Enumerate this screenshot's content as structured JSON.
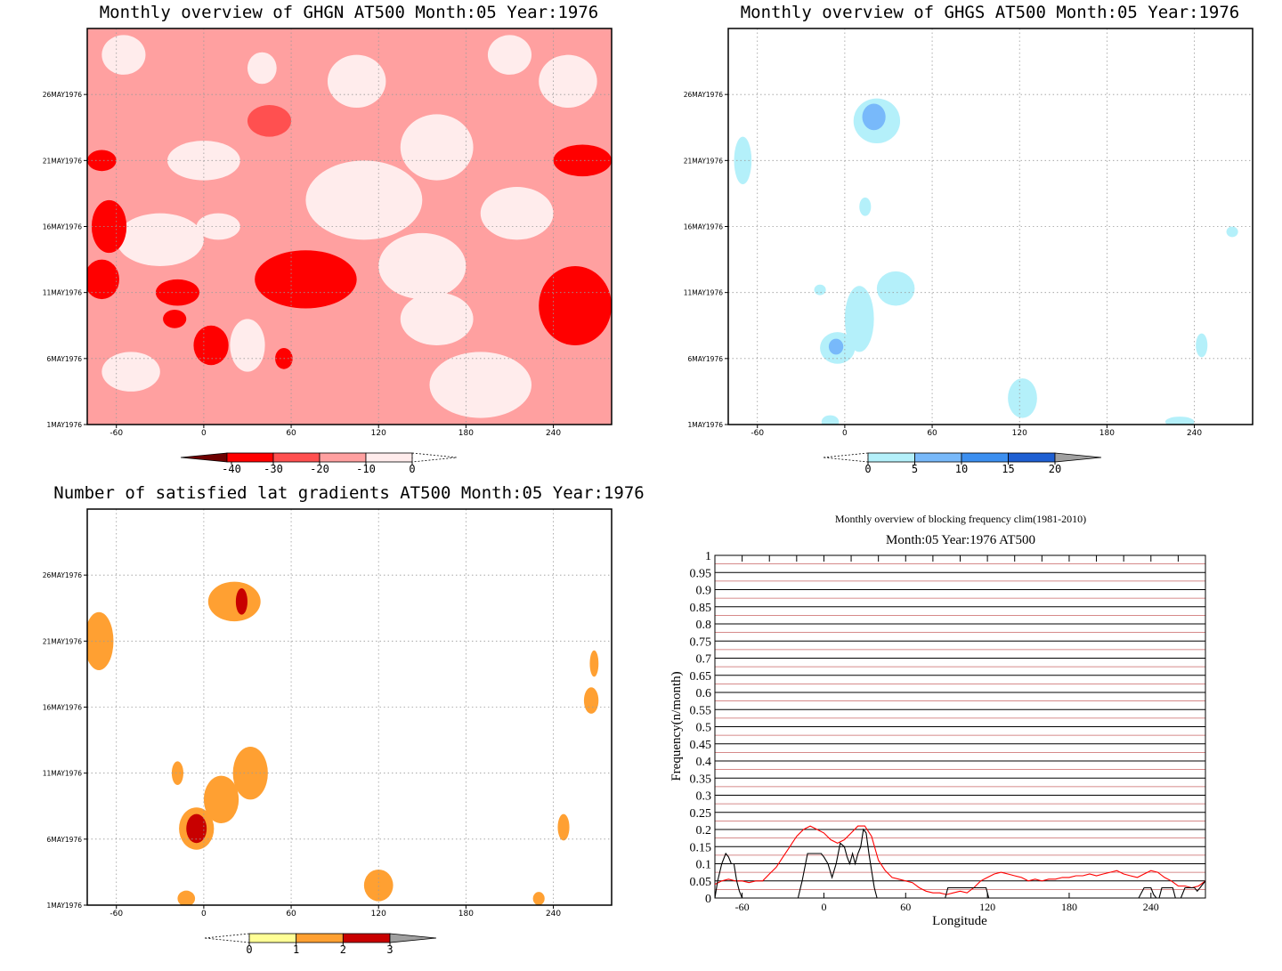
{
  "chart_data": [
    {
      "type": "heatmap",
      "title": "Monthly overview of GHGN AT500 Month:05 Year:1976",
      "x_ticks": [
        "-60",
        "0",
        "60",
        "120",
        "180",
        "240"
      ],
      "x_tick_values": [
        -60,
        0,
        60,
        120,
        180,
        240
      ],
      "xlim": [
        -80,
        280
      ],
      "y_ticks": [
        "1MAY1976",
        "6MAY1976",
        "11MAY1976",
        "16MAY1976",
        "21MAY1976",
        "26MAY1976"
      ],
      "y_tick_values": [
        1,
        6,
        11,
        16,
        21,
        26
      ],
      "ylim": [
        1,
        31
      ],
      "grid": true,
      "colorbar": {
        "levels": [
          -40,
          -30,
          -20,
          -10,
          0
        ],
        "labels": [
          "-40",
          "-30",
          "-20",
          "-10",
          "0"
        ],
        "colors": [
          "#6e0000",
          "#ff0000",
          "#ff5050",
          "#ffa0a0",
          "#ffecec"
        ],
        "extend": "both"
      },
      "blobs": [
        {
          "lon": -55,
          "day": 29,
          "rx": 15,
          "ry": 1.5,
          "level": 0
        },
        {
          "lon": 40,
          "day": 28,
          "rx": 10,
          "ry": 1.2,
          "level": 0
        },
        {
          "lon": 105,
          "day": 27,
          "rx": 20,
          "ry": 2.0,
          "level": 0
        },
        {
          "lon": 210,
          "day": 29,
          "rx": 15,
          "ry": 1.5,
          "level": 0
        },
        {
          "lon": 45,
          "day": 24,
          "rx": 15,
          "ry": 1.2,
          "level": -20
        },
        {
          "lon": 0,
          "day": 21,
          "rx": 25,
          "ry": 1.5,
          "level": 0
        },
        {
          "lon": 110,
          "day": 18,
          "rx": 40,
          "ry": 3.0,
          "level": 0
        },
        {
          "lon": 160,
          "day": 22,
          "rx": 25,
          "ry": 2.5,
          "level": 0
        },
        {
          "lon": 215,
          "day": 17,
          "rx": 25,
          "ry": 2.0,
          "level": 0
        },
        {
          "lon": -30,
          "day": 15,
          "rx": 30,
          "ry": 2.0,
          "level": 0
        },
        {
          "lon": 10,
          "day": 16,
          "rx": 15,
          "ry": 1.0,
          "level": 0
        },
        {
          "lon": 150,
          "day": 13,
          "rx": 30,
          "ry": 2.5,
          "level": 0
        },
        {
          "lon": 30,
          "day": 7,
          "rx": 12,
          "ry": 2.0,
          "level": 0
        },
        {
          "lon": -50,
          "day": 5,
          "rx": 20,
          "ry": 1.5,
          "level": 0
        },
        {
          "lon": 190,
          "day": 4,
          "rx": 35,
          "ry": 2.5,
          "level": 0
        },
        {
          "lon": 160,
          "day": 9,
          "rx": 25,
          "ry": 2.0,
          "level": 0
        },
        {
          "lon": 250,
          "day": 27,
          "rx": 20,
          "ry": 2.0,
          "level": 0
        },
        {
          "lon": 70,
          "day": 12,
          "rx": 35,
          "ry": 2.2,
          "level": -30
        },
        {
          "lon": 5,
          "day": 7,
          "rx": 12,
          "ry": 1.5,
          "level": -30
        },
        {
          "lon": -70,
          "day": 12,
          "rx": 12,
          "ry": 1.5,
          "level": -30
        },
        {
          "lon": -65,
          "day": 16,
          "rx": 12,
          "ry": 2.0,
          "level": -30
        },
        {
          "lon": -18,
          "day": 11,
          "rx": 15,
          "ry": 1.0,
          "level": -30
        },
        {
          "lon": 255,
          "day": 10,
          "rx": 25,
          "ry": 3.0,
          "level": -30
        },
        {
          "lon": 260,
          "day": 21,
          "rx": 20,
          "ry": 1.2,
          "level": -30
        },
        {
          "lon": -70,
          "day": 21,
          "rx": 10,
          "ry": 0.8,
          "level": -30
        },
        {
          "lon": 55,
          "day": 6,
          "rx": 6,
          "ry": 0.8,
          "level": -30
        },
        {
          "lon": -20,
          "day": 9,
          "rx": 8,
          "ry": 0.7,
          "level": -30
        }
      ]
    },
    {
      "type": "heatmap",
      "title": "Monthly overview of GHGS AT500 Month:05 Year:1976",
      "x_ticks": [
        "-60",
        "0",
        "60",
        "120",
        "180",
        "240"
      ],
      "x_tick_values": [
        -60,
        0,
        60,
        120,
        180,
        240
      ],
      "xlim": [
        -80,
        280
      ],
      "y_ticks": [
        "1MAY1976",
        "6MAY1976",
        "11MAY1976",
        "16MAY1976",
        "21MAY1976",
        "26MAY1976"
      ],
      "y_tick_values": [
        1,
        6,
        11,
        16,
        21,
        26
      ],
      "ylim": [
        1,
        31
      ],
      "grid": true,
      "colorbar": {
        "levels": [
          0,
          5,
          10,
          15,
          20
        ],
        "labels": [
          "0",
          "5",
          "10",
          "15",
          "20"
        ],
        "colors": [
          "#b4f0fa",
          "#78b9fa",
          "#3c8ff0",
          "#1e5fd2",
          "#a0a0a0"
        ],
        "extend": "both"
      },
      "blobs": [
        {
          "lon": 22,
          "day": 24,
          "rx": 16,
          "ry": 1.7,
          "level": 0
        },
        {
          "lon": 20,
          "day": 24.3,
          "rx": 8,
          "ry": 1.0,
          "level": 5
        },
        {
          "lon": -70,
          "day": 21,
          "rx": 6,
          "ry": 1.8,
          "level": 0
        },
        {
          "lon": 14,
          "day": 17.5,
          "rx": 4,
          "ry": 0.7,
          "level": 0
        },
        {
          "lon": 10,
          "day": 9,
          "rx": 10,
          "ry": 2.5,
          "level": 0
        },
        {
          "lon": 35,
          "day": 11.3,
          "rx": 13,
          "ry": 1.3,
          "level": 0
        },
        {
          "lon": -5,
          "day": 6.8,
          "rx": 12,
          "ry": 1.2,
          "level": 0
        },
        {
          "lon": -6,
          "day": 6.9,
          "rx": 5,
          "ry": 0.6,
          "level": 5
        },
        {
          "lon": -17,
          "day": 11.2,
          "rx": 4,
          "ry": 0.4,
          "level": 0
        },
        {
          "lon": 122,
          "day": 3,
          "rx": 10,
          "ry": 1.5,
          "level": 0
        },
        {
          "lon": 245,
          "day": 7,
          "rx": 4,
          "ry": 0.9,
          "level": 0
        },
        {
          "lon": 266,
          "day": 15.6,
          "rx": 4,
          "ry": 0.4,
          "level": 0
        },
        {
          "lon": -10,
          "day": 1.2,
          "rx": 6,
          "ry": 0.5,
          "level": 0
        },
        {
          "lon": 230,
          "day": 1.2,
          "rx": 10,
          "ry": 0.4,
          "level": 0
        }
      ]
    },
    {
      "type": "heatmap",
      "title": "Number of satisfied lat gradients AT500 Month:05 Year:1976",
      "x_ticks": [
        "-60",
        "0",
        "60",
        "120",
        "180",
        "240"
      ],
      "x_tick_values": [
        -60,
        0,
        60,
        120,
        180,
        240
      ],
      "xlim": [
        -80,
        280
      ],
      "y_ticks": [
        "1MAY1976",
        "6MAY1976",
        "11MAY1976",
        "16MAY1976",
        "21MAY1976",
        "26MAY1976"
      ],
      "y_tick_values": [
        1,
        6,
        11,
        16,
        21,
        26
      ],
      "ylim": [
        1,
        31
      ],
      "grid": true,
      "colorbar": {
        "levels": [
          0,
          1,
          2,
          3
        ],
        "labels": [
          "0",
          "1",
          "2",
          "3"
        ],
        "colors": [
          "#ffff96",
          "#ffa032",
          "#c80000",
          "#a0a0a0"
        ],
        "extend": "both"
      },
      "blobs": [
        {
          "lon": 21,
          "day": 24,
          "rx": 18,
          "ry": 1.5,
          "level": 1
        },
        {
          "lon": 26,
          "day": 24,
          "rx": 4,
          "ry": 1.0,
          "level": 2
        },
        {
          "lon": -72,
          "day": 21,
          "rx": 10,
          "ry": 2.2,
          "level": 1
        },
        {
          "lon": 268,
          "day": 19.3,
          "rx": 3,
          "ry": 1.0,
          "level": 1
        },
        {
          "lon": 266,
          "day": 16.5,
          "rx": 5,
          "ry": 1.0,
          "level": 1
        },
        {
          "lon": 32,
          "day": 11,
          "rx": 12,
          "ry": 2.0,
          "level": 1
        },
        {
          "lon": -18,
          "day": 11,
          "rx": 4,
          "ry": 0.9,
          "level": 1
        },
        {
          "lon": 12,
          "day": 9,
          "rx": 12,
          "ry": 1.8,
          "level": 1
        },
        {
          "lon": -5,
          "day": 6.8,
          "rx": 12,
          "ry": 1.6,
          "level": 1
        },
        {
          "lon": -5,
          "day": 6.8,
          "rx": 7,
          "ry": 1.1,
          "level": 2
        },
        {
          "lon": -12,
          "day": 1.5,
          "rx": 6,
          "ry": 0.6,
          "level": 1
        },
        {
          "lon": 120,
          "day": 2.5,
          "rx": 10,
          "ry": 1.2,
          "level": 1
        },
        {
          "lon": 247,
          "day": 6.9,
          "rx": 4,
          "ry": 1.0,
          "level": 1
        },
        {
          "lon": 230,
          "day": 1.5,
          "rx": 4,
          "ry": 0.5,
          "level": 1
        }
      ]
    },
    {
      "type": "line",
      "title": "Monthly overview of blocking frequency clim(1981-2010)",
      "subtitle": "Month:05 Year:1976  AT500",
      "xlabel": "Longitude",
      "ylabel": "Frequency(n/month)",
      "xlim": [
        -80,
        280
      ],
      "ylim": [
        0,
        1
      ],
      "x_ticks": [
        "-60",
        "0",
        "60",
        "120",
        "180",
        "240"
      ],
      "x_tick_values": [
        -60,
        0,
        60,
        120,
        180,
        240
      ],
      "y_ticks": [
        "0",
        "0.05",
        "0.1",
        "0.15",
        "0.2",
        "0.25",
        "0.3",
        "0.35",
        "0.4",
        "0.45",
        "0.5",
        "0.55",
        "0.6",
        "0.65",
        "0.7",
        "0.75",
        "0.8",
        "0.85",
        "0.9",
        "0.95",
        "1"
      ],
      "grid": true,
      "series": [
        {
          "color": "#ff0000",
          "x": [
            -80,
            -75,
            -70,
            -65,
            -60,
            -55,
            -50,
            -45,
            -40,
            -35,
            -30,
            -25,
            -20,
            -15,
            -10,
            -5,
            0,
            5,
            10,
            15,
            20,
            25,
            30,
            35,
            40,
            45,
            50,
            55,
            60,
            65,
            70,
            75,
            80,
            85,
            90,
            95,
            100,
            105,
            110,
            115,
            120,
            125,
            130,
            135,
            140,
            145,
            150,
            155,
            160,
            165,
            170,
            175,
            180,
            185,
            190,
            195,
            200,
            205,
            210,
            215,
            220,
            225,
            230,
            235,
            240,
            245,
            250,
            255,
            260,
            265,
            270,
            275,
            280
          ],
          "y": [
            0.04,
            0.05,
            0.055,
            0.05,
            0.05,
            0.045,
            0.05,
            0.05,
            0.07,
            0.09,
            0.12,
            0.15,
            0.18,
            0.2,
            0.21,
            0.2,
            0.19,
            0.17,
            0.16,
            0.17,
            0.19,
            0.21,
            0.21,
            0.18,
            0.11,
            0.08,
            0.06,
            0.055,
            0.05,
            0.045,
            0.03,
            0.02,
            0.015,
            0.015,
            0.01,
            0.015,
            0.02,
            0.015,
            0.03,
            0.05,
            0.06,
            0.07,
            0.075,
            0.07,
            0.065,
            0.06,
            0.05,
            0.055,
            0.05,
            0.055,
            0.055,
            0.06,
            0.06,
            0.065,
            0.065,
            0.07,
            0.065,
            0.07,
            0.075,
            0.08,
            0.07,
            0.065,
            0.06,
            0.07,
            0.08,
            0.075,
            0.06,
            0.05,
            0.035,
            0.035,
            0.03,
            0.035,
            0.05
          ]
        },
        {
          "color": "#000000",
          "x": [
            -80,
            -78,
            -75,
            -72,
            -70,
            -68,
            -66,
            -64,
            -62,
            -60,
            -58,
            -56,
            -40,
            -30,
            -22,
            -19,
            -16,
            -12,
            -8,
            -4,
            -2,
            0,
            3,
            6,
            9,
            12,
            15,
            17,
            19,
            21,
            23,
            25,
            27,
            29,
            31,
            33,
            35,
            37,
            39,
            41,
            43,
            85,
            87,
            89,
            91,
            93,
            99,
            107,
            109,
            111,
            113,
            115,
            117,
            119,
            121,
            123,
            125,
            127,
            129,
            131,
            133,
            135,
            137,
            139,
            150,
            200,
            225,
            227,
            229,
            231,
            235,
            238,
            240,
            242,
            244,
            246,
            248,
            252,
            256,
            258,
            260,
            262,
            265,
            268,
            270,
            272,
            274,
            276,
            278,
            280
          ],
          "y": [
            0,
            0.05,
            0.1,
            0.13,
            0.12,
            0.1,
            0.1,
            0.05,
            0.02,
            0,
            0,
            0,
            0,
            0,
            0,
            0,
            0.05,
            0.13,
            0.13,
            0.13,
            0.13,
            0.12,
            0.1,
            0.06,
            0.1,
            0.16,
            0.15,
            0.12,
            0.1,
            0.13,
            0.1,
            0.13,
            0.15,
            0.2,
            0.19,
            0.13,
            0.08,
            0.03,
            0,
            0,
            0,
            0,
            0,
            0,
            0.03,
            0.03,
            0.03,
            0.03,
            0.03,
            0.03,
            0.03,
            0.03,
            0.03,
            0.03,
            0,
            0,
            0,
            0,
            0,
            0,
            0,
            0,
            0,
            0,
            0,
            0,
            0,
            0,
            0,
            0,
            0.03,
            0.03,
            0.03,
            0.01,
            0,
            0,
            0.03,
            0.03,
            0.03,
            0,
            0,
            0,
            0.03,
            0.03,
            0.03,
            0.03,
            0.02,
            0.03,
            0.04,
            0.05
          ]
        }
      ]
    }
  ]
}
